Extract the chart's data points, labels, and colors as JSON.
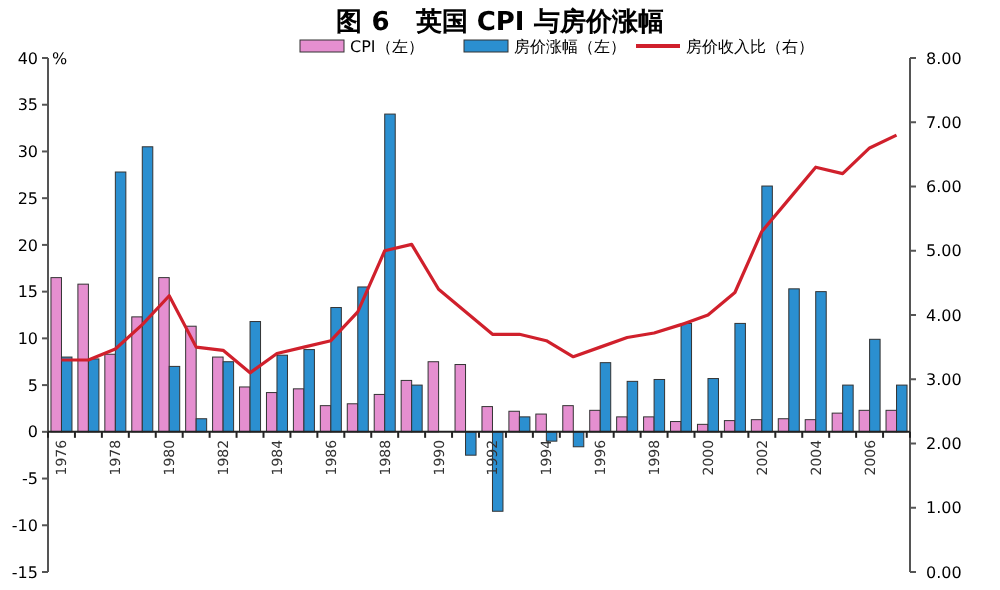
{
  "chart_data": {
    "type": "bar",
    "title": "图 6　英国 CPI 与房价涨幅",
    "ylabel": "%",
    "categories": [
      "1976",
      null,
      "1978",
      null,
      "1980",
      null,
      "1982",
      null,
      "1984",
      null,
      "1986",
      null,
      "1988",
      null,
      "1990",
      null,
      "1992",
      null,
      "1994",
      null,
      "1996",
      null,
      "1998",
      null,
      "2000",
      null,
      "2002",
      null,
      "2004",
      null,
      "2006",
      null
    ],
    "series": [
      {
        "name": "CPI（左）",
        "color": "#e58fd0",
        "values": [
          16.5,
          15.8,
          8.3,
          12.3,
          16.5,
          11.3,
          8.0,
          4.8,
          4.2,
          4.6,
          2.8,
          3.0,
          4.0,
          5.5,
          7.5,
          7.2,
          2.7,
          2.2,
          1.9,
          2.8,
          2.3,
          1.6,
          1.6,
          1.1,
          0.8,
          1.2,
          1.3,
          1.4,
          1.3,
          2.0,
          2.3,
          2.3
        ]
      },
      {
        "name": "房价涨幅（左）",
        "color": "#2b8fd0",
        "values": [
          8.0,
          7.8,
          27.8,
          30.5,
          7.0,
          1.4,
          7.5,
          11.8,
          8.2,
          8.8,
          13.3,
          15.5,
          34.0,
          5.0,
          null,
          -2.5,
          -8.5,
          1.6,
          -1.0,
          -1.6,
          7.4,
          5.4,
          5.6,
          11.6,
          5.7,
          11.6,
          26.3,
          15.3,
          15.0,
          5.0,
          9.9,
          5.0
        ]
      },
      {
        "name": "房价收入比（右）",
        "type": "line",
        "axis": "y2",
        "color": "#d0202c",
        "values": [
          3.3,
          3.3,
          3.47,
          3.85,
          4.3,
          3.5,
          3.45,
          3.1,
          3.4,
          3.5,
          3.6,
          4.05,
          5.0,
          5.1,
          4.4,
          4.05,
          3.7,
          3.7,
          3.6,
          3.35,
          3.5,
          3.65,
          3.72,
          3.85,
          4.0,
          4.35,
          5.3,
          5.8,
          6.3,
          6.2,
          6.6,
          6.8
        ]
      }
    ],
    "ylim": [
      -15,
      40
    ],
    "yticks": [
      -15,
      -10,
      -5,
      0,
      5,
      10,
      15,
      20,
      25,
      30,
      35,
      40
    ],
    "y2lim": [
      0,
      8
    ],
    "y2ticks": [
      {
        "value": 0,
        "label": "0.00"
      },
      {
        "value": 1,
        "label": "1.00"
      },
      {
        "value": 2,
        "label": "2.00"
      },
      {
        "value": 3,
        "label": "3.00"
      },
      {
        "value": 4,
        "label": "4.00"
      },
      {
        "value": 5,
        "label": "5.00"
      },
      {
        "value": 6,
        "label": "6.00"
      },
      {
        "value": 7,
        "label": "7.00"
      },
      {
        "value": 8,
        "label": "8.00"
      }
    ],
    "legend": "top",
    "grid": false,
    "marker": "none",
    "line_style": "solid"
  }
}
